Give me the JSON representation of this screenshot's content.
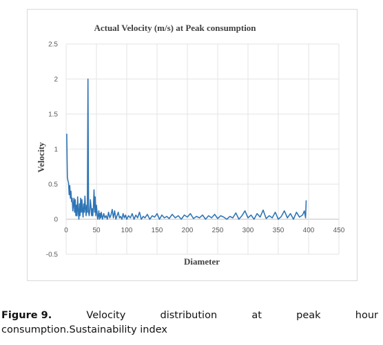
{
  "caption": {
    "label": "Figure 9.",
    "words": [
      "Velocity",
      "distribution",
      "at",
      "peak",
      "hour"
    ],
    "line2": "consumption.Sustainability index"
  },
  "chart_data": {
    "type": "line",
    "title": "Actual Velocity (m/s) at Peak consumption",
    "xlabel": "Diameter",
    "ylabel": "Velocity",
    "xlim": [
      0,
      450
    ],
    "ylim": [
      -0.5,
      2.5
    ],
    "x_ticks": [
      "0",
      "50",
      "100",
      "150",
      "200",
      "250",
      "300",
      "350",
      "400",
      "450"
    ],
    "y_ticks": [
      "-0.5",
      "0",
      "0.5",
      "1",
      "1.5",
      "2",
      "2.5"
    ],
    "grid": true,
    "series_color": "#2e75b6",
    "series": [
      {
        "x": [
          1,
          2,
          3,
          4,
          5,
          6,
          7,
          8,
          9,
          10,
          11,
          12,
          13,
          14,
          15,
          16,
          17,
          18,
          19,
          20,
          21,
          22,
          23,
          24,
          25,
          26,
          27,
          28,
          29,
          30,
          31,
          32,
          33,
          34,
          35,
          36,
          37,
          38,
          39,
          40,
          41,
          42,
          43,
          44,
          45,
          46,
          47,
          48,
          49,
          50,
          51,
          52,
          53,
          54,
          55,
          56,
          57,
          58,
          59,
          60,
          62,
          64,
          66,
          68,
          70,
          72,
          74,
          76,
          78,
          80,
          82,
          84,
          86,
          88,
          90,
          92,
          94,
          96,
          98,
          100,
          103,
          106,
          109,
          112,
          115,
          118,
          121,
          124,
          127,
          130,
          134,
          138,
          142,
          146,
          150,
          154,
          158,
          162,
          166,
          170,
          175,
          180,
          185,
          190,
          195,
          200,
          205,
          210,
          215,
          220,
          225,
          230,
          235,
          240,
          245,
          250,
          255,
          260,
          265,
          270,
          275,
          280,
          285,
          290,
          295,
          300,
          305,
          310,
          315,
          320,
          325,
          330,
          335,
          340,
          345,
          350,
          355,
          360,
          365,
          370,
          375,
          380,
          385,
          390,
          393,
          395,
          396
        ],
        "y": [
          1.22,
          0.6,
          0.55,
          0.52,
          0.35,
          0.48,
          0.3,
          0.4,
          0.25,
          0.3,
          0.12,
          0.22,
          0.3,
          0.1,
          0.28,
          0.05,
          0.2,
          0.05,
          0.32,
          0.12,
          0.0,
          0.22,
          0.05,
          0.3,
          0.1,
          0.28,
          0.12,
          0.03,
          0.22,
          0.1,
          0.33,
          0.15,
          0.05,
          0.2,
          0.1,
          2.0,
          0.1,
          0.05,
          0.12,
          0.28,
          0.18,
          0.05,
          0.15,
          0.05,
          0.18,
          0.42,
          0.1,
          0.32,
          0.05,
          0.2,
          0.1,
          0.0,
          0.05,
          0.12,
          0.0,
          0.08,
          0.02,
          0.1,
          0.05,
          0.0,
          0.08,
          0.02,
          0.05,
          0.0,
          0.1,
          0.02,
          0.06,
          0.14,
          0.02,
          0.12,
          0.0,
          0.05,
          0.1,
          0.02,
          0.04,
          0.0,
          0.08,
          0.02,
          0.06,
          0.0,
          0.05,
          0.02,
          0.08,
          0.0,
          0.06,
          0.02,
          0.1,
          0.0,
          0.04,
          0.02,
          0.07,
          0.0,
          0.05,
          0.03,
          0.08,
          0.0,
          0.06,
          0.02,
          0.04,
          0.01,
          0.07,
          0.02,
          0.05,
          0.0,
          0.06,
          0.03,
          0.08,
          0.01,
          0.04,
          0.02,
          0.06,
          0.0,
          0.05,
          0.02,
          0.07,
          0.01,
          0.05,
          0.03,
          0.0,
          0.04,
          0.02,
          0.09,
          0.0,
          0.05,
          0.12,
          0.02,
          0.06,
          0.0,
          0.08,
          0.03,
          0.13,
          0.01,
          0.05,
          0.02,
          0.1,
          0.0,
          0.04,
          0.12,
          0.02,
          0.08,
          0.0,
          0.1,
          0.03,
          0.06,
          0.12,
          0.02,
          0.27
        ]
      }
    ]
  }
}
